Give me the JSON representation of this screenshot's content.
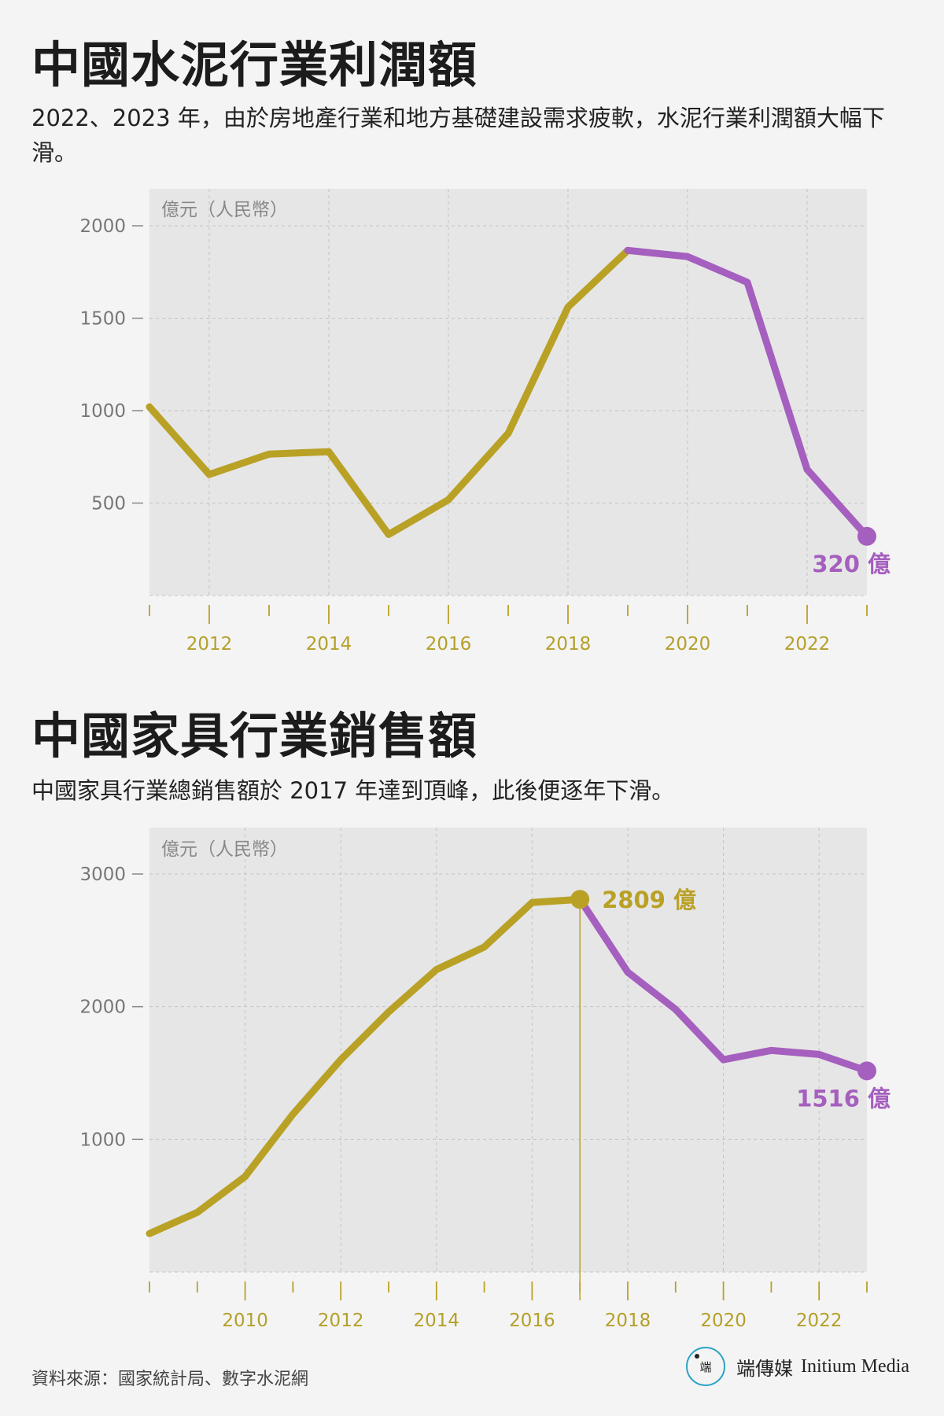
{
  "chart1": {
    "title": "中國水泥行業利潤額",
    "subtitle": "2022、2023 年，由於房地產行業和地方基礎建設需求疲軟，水泥行業利潤額大幅下滑。",
    "unit": "億元（人民幣）",
    "end_label": "320 億"
  },
  "chart2": {
    "title": "中國家具行業銷售額",
    "subtitle": "中國家具行業總銷售額於 2017 年達到頂峰，此後便逐年下滑。",
    "unit": "億元（人民幣）",
    "peak_label": "2809 億",
    "end_label": "1516 億"
  },
  "footer": {
    "source": "資料來源：國家統計局、數字水泥網",
    "brand_mark": "端",
    "brand_name": "端傳媒",
    "brand_en": "Initium Media"
  },
  "colors": {
    "gold": "#b9a126",
    "purple": "#a55fbe",
    "plot_bg": "#e6e6e6"
  },
  "chart_data": [
    {
      "type": "line",
      "title": "中國水泥行業利潤額",
      "ylabel": "億元（人民幣）",
      "x": [
        2011,
        2012,
        2013,
        2014,
        2015,
        2016,
        2017,
        2018,
        2019,
        2020,
        2021,
        2022,
        2023
      ],
      "values": [
        1020,
        655,
        765,
        778,
        330,
        518,
        877,
        1560,
        1867,
        1833,
        1694,
        682,
        320
      ],
      "highlight_from_x": 2019,
      "xlim": [
        2011,
        2023
      ],
      "ylim": [
        0,
        2200
      ],
      "xticks": [
        2012,
        2014,
        2016,
        2018,
        2020,
        2022
      ],
      "yticks": [
        500,
        1000,
        1500,
        2000
      ],
      "grid": true,
      "annotation": {
        "x": 2023,
        "y": 320,
        "text": "320 億"
      }
    },
    {
      "type": "line",
      "title": "中國家具行業銷售額",
      "ylabel": "億元（人民幣）",
      "x": [
        2008,
        2009,
        2010,
        2011,
        2012,
        2013,
        2014,
        2015,
        2016,
        2017,
        2018,
        2019,
        2020,
        2021,
        2022,
        2023
      ],
      "values": [
        290,
        450,
        720,
        1190,
        1600,
        1960,
        2280,
        2450,
        2785,
        2809,
        2260,
        1980,
        1600,
        1670,
        1640,
        1516
      ],
      "highlight_from_x": 2017,
      "xlim": [
        2008,
        2023
      ],
      "ylim": [
        0,
        3350
      ],
      "xticks": [
        2010,
        2012,
        2014,
        2016,
        2018,
        2020,
        2022
      ],
      "yticks": [
        1000,
        2000,
        3000
      ],
      "grid": true,
      "annotations": [
        {
          "x": 2017,
          "y": 2809,
          "text": "2809 億"
        },
        {
          "x": 2023,
          "y": 1516,
          "text": "1516 億"
        }
      ]
    }
  ]
}
